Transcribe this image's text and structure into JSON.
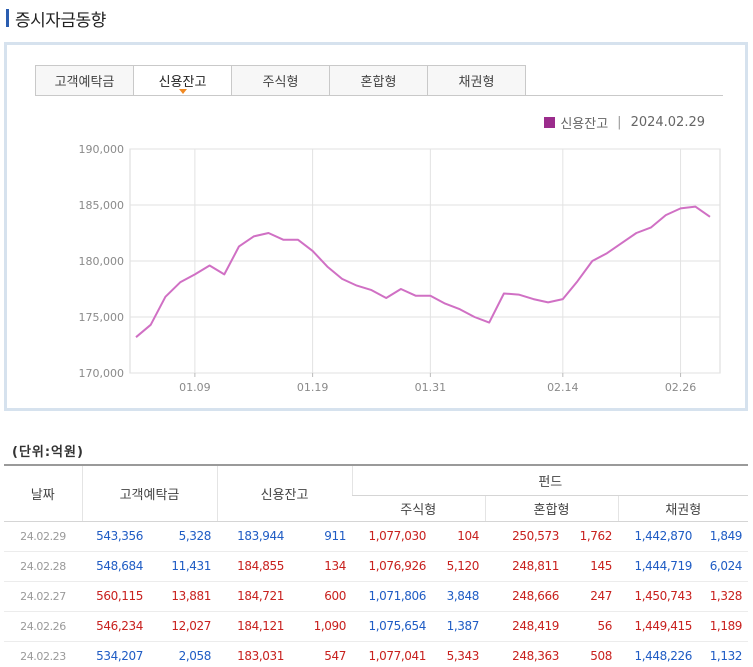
{
  "page": {
    "title": "증시자금동향"
  },
  "tabs": [
    {
      "label": "고객예탁금",
      "active": false
    },
    {
      "label": "신용잔고",
      "active": true
    },
    {
      "label": "주식형",
      "active": false
    },
    {
      "label": "혼합형",
      "active": false
    },
    {
      "label": "채권형",
      "active": false
    }
  ],
  "legend": {
    "series": "신용잔고",
    "separator": "|",
    "date": "2024.02.29",
    "color": "#9b2c8c"
  },
  "chart_data": {
    "type": "line",
    "line_color": "#d070c4",
    "ylim": [
      170000,
      190000
    ],
    "y_ticks": [
      190000,
      185000,
      180000,
      175000,
      170000
    ],
    "y_tick_labels": [
      "190,000",
      "185,000",
      "180,000",
      "175,000",
      "170,000"
    ],
    "x_tick_labels": [
      "01.09",
      "01.19",
      "01.31",
      "02.14",
      "02.26"
    ],
    "x_tick_index": [
      4,
      12,
      20,
      29,
      37
    ],
    "grid": true,
    "values": [
      173200,
      174300,
      176800,
      178100,
      178800,
      179600,
      178800,
      181300,
      182200,
      182500,
      181900,
      181900,
      180900,
      179500,
      178400,
      177800,
      177400,
      176700,
      177500,
      176900,
      176900,
      176200,
      175700,
      175000,
      174500,
      177100,
      177000,
      176600,
      176300,
      176600,
      178200,
      180000,
      180700,
      181600,
      182500,
      183000,
      184100,
      184700,
      184855,
      183944
    ]
  },
  "unit_label": "(단위:억원)",
  "table": {
    "headers": {
      "date": "날짜",
      "deposit": "고객예탁금",
      "credit": "신용잔고",
      "fund": "펀드",
      "stock": "주식형",
      "mixed": "혼합형",
      "bond": "채권형"
    },
    "rows": [
      {
        "date": "24.02.29",
        "deposit": "543,356",
        "deposit_chg": "5,328",
        "credit": "183,944",
        "credit_chg": "911",
        "stock": "1,077,030",
        "stock_chg": "104",
        "mixed": "250,573",
        "mixed_chg": "1,762",
        "bond": "1,442,870",
        "bond_chg": "1,849",
        "dir": {
          "deposit": "blue",
          "credit": "blue",
          "stock": "red",
          "mixed": "red",
          "bond": "blue"
        }
      },
      {
        "date": "24.02.28",
        "deposit": "548,684",
        "deposit_chg": "11,431",
        "credit": "184,855",
        "credit_chg": "134",
        "stock": "1,076,926",
        "stock_chg": "5,120",
        "mixed": "248,811",
        "mixed_chg": "145",
        "bond": "1,444,719",
        "bond_chg": "6,024",
        "dir": {
          "deposit": "blue",
          "credit": "red",
          "stock": "red",
          "mixed": "red",
          "bond": "blue"
        }
      },
      {
        "date": "24.02.27",
        "deposit": "560,115",
        "deposit_chg": "13,881",
        "credit": "184,721",
        "credit_chg": "600",
        "stock": "1,071,806",
        "stock_chg": "3,848",
        "mixed": "248,666",
        "mixed_chg": "247",
        "bond": "1,450,743",
        "bond_chg": "1,328",
        "dir": {
          "deposit": "red",
          "credit": "red",
          "stock": "blue",
          "mixed": "red",
          "bond": "red"
        }
      },
      {
        "date": "24.02.26",
        "deposit": "546,234",
        "deposit_chg": "12,027",
        "credit": "184,121",
        "credit_chg": "1,090",
        "stock": "1,075,654",
        "stock_chg": "1,387",
        "mixed": "248,419",
        "mixed_chg": "56",
        "bond": "1,449,415",
        "bond_chg": "1,189",
        "dir": {
          "deposit": "red",
          "credit": "red",
          "stock": "blue",
          "mixed": "red",
          "bond": "red"
        }
      },
      {
        "date": "24.02.23",
        "deposit": "534,207",
        "deposit_chg": "2,058",
        "credit": "183,031",
        "credit_chg": "547",
        "stock": "1,077,041",
        "stock_chg": "5,343",
        "mixed": "248,363",
        "mixed_chg": "508",
        "bond": "1,448,226",
        "bond_chg": "1,132",
        "dir": {
          "deposit": "blue",
          "credit": "red",
          "stock": "red",
          "mixed": "red",
          "bond": "blue"
        }
      }
    ]
  }
}
